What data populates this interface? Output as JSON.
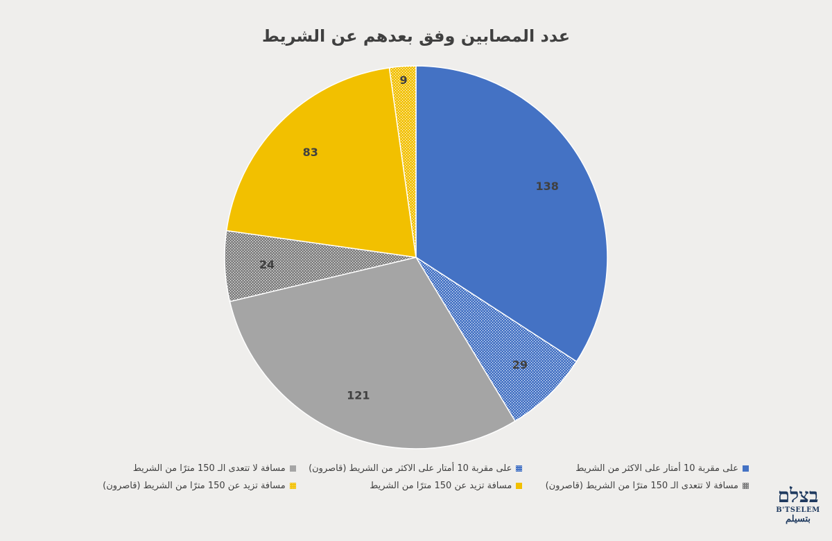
{
  "chart_data": {
    "type": "pie",
    "title": "عدد المصابين وفق بعدهم عن الشريط",
    "start_angle_deg": 0,
    "direction": "clockwise",
    "legend_position": "bottom",
    "slices": [
      {
        "label": "على مقربة 10 أمتار على الاكثر من الشريط",
        "value": 138,
        "color": "#4472c4",
        "pattern": "solid"
      },
      {
        "label": "على مقربة 10 أمتار على الاكثر من الشريط (قاصرون)",
        "value": 29,
        "color": "#4472c4",
        "pattern": "dots"
      },
      {
        "label": "مسافة لا تتعدى الـ 150 مترًا من الشريط",
        "value": 121,
        "color": "#a5a5a5",
        "pattern": "solid"
      },
      {
        "label": "مسافة لا تتعدى الـ 150 مترًا من الشريط (قاصرون)",
        "value": 24,
        "color": "#7f7f7f",
        "pattern": "dots"
      },
      {
        "label": "مسافة تزيد عن 150 مترًا من الشريط",
        "value": 83,
        "color": "#f2c000",
        "pattern": "solid"
      },
      {
        "label": "مسافة تزيد عن 150 مترًا من الشريط (قاصرون)",
        "value": 9,
        "color": "#f2c000",
        "pattern": "dots"
      }
    ]
  },
  "logo": {
    "hebrew": "בצלם",
    "english": "B'TSELEM",
    "arabic": "بتسيلم"
  }
}
